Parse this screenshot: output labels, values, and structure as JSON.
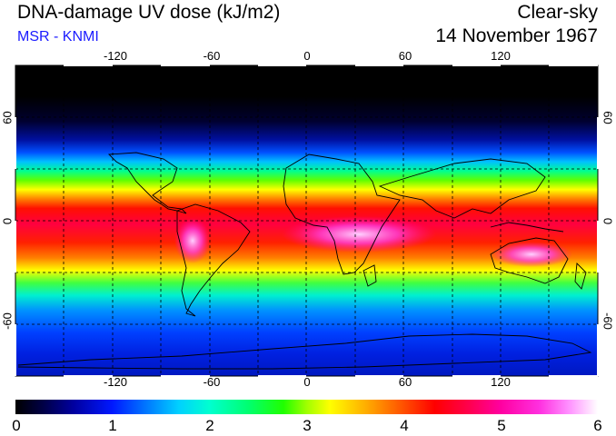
{
  "header": {
    "title": "DNA-damage UV dose (kJ/m2)",
    "subtitle": "MSR - KNMI",
    "mode": "Clear-sky",
    "date": "14 November 1967"
  },
  "map": {
    "longitude_ticks": [
      "-120",
      "-60",
      "0",
      "60",
      "120"
    ],
    "latitude_ticks": [
      "60",
      "0",
      "-60"
    ]
  },
  "colorbar": {
    "labels": [
      "0",
      "1",
      "2",
      "3",
      "4",
      "5",
      "6"
    ],
    "min": 0,
    "max": 6
  },
  "colors": {
    "subtitle": "#1a1aff",
    "background_high_lat": "#000000",
    "low": "#0000a0",
    "mid": "#00ff70",
    "high": "#ff0000",
    "peak": "#ff90ff"
  }
}
